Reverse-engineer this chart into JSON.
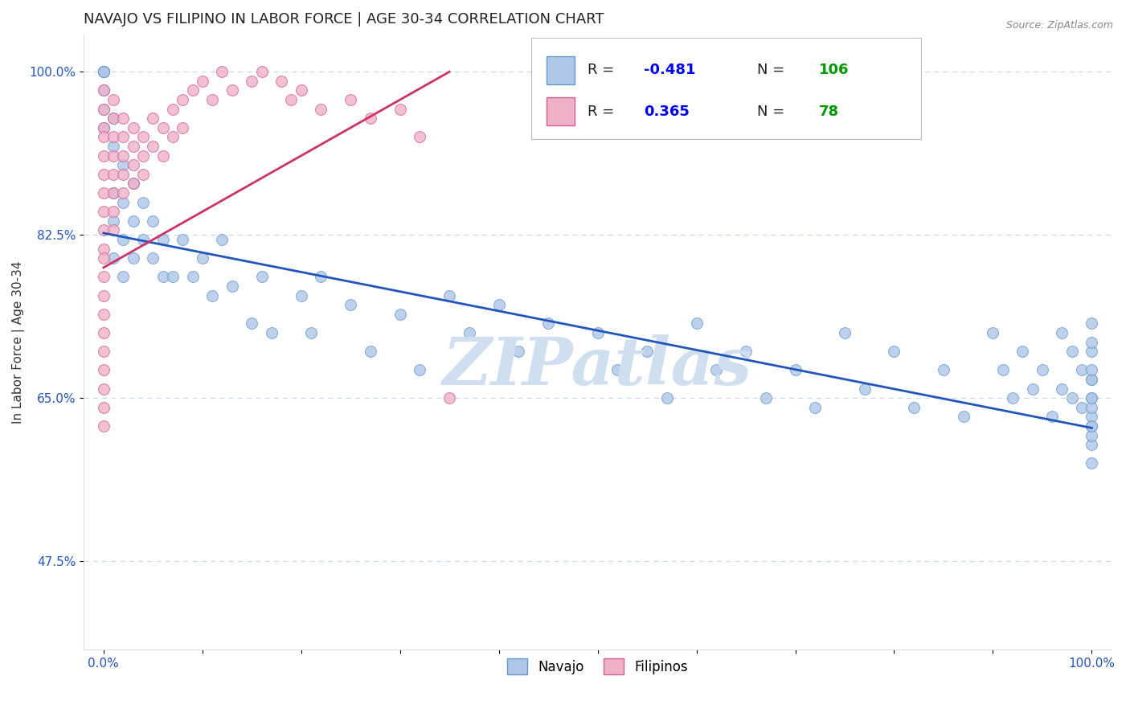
{
  "title": "NAVAJO VS FILIPINO IN LABOR FORCE | AGE 30-34 CORRELATION CHART",
  "source_text": "Source: ZipAtlas.com",
  "ylabel": "In Labor Force | Age 30-34",
  "xlim": [
    -0.02,
    1.02
  ],
  "ylim": [
    0.38,
    1.04
  ],
  "yticks": [
    0.475,
    0.65,
    0.825,
    1.0
  ],
  "ytick_labels": [
    "47.5%",
    "65.0%",
    "82.5%",
    "100.0%"
  ],
  "xticks": [
    0.0,
    0.1,
    0.2,
    0.3,
    0.4,
    0.5,
    0.6,
    0.7,
    0.8,
    0.9,
    1.0
  ],
  "xtick_labels": [
    "0.0%",
    "",
    "",
    "",
    "",
    "",
    "",
    "",
    "",
    "",
    "100.0%"
  ],
  "navajo_color": "#aec6e8",
  "navajo_edge_color": "#6699cc",
  "filipino_color": "#f0b0c8",
  "filipino_edge_color": "#d06090",
  "navajo_line_color": "#2255bb",
  "filipino_line_color": "#cc3366",
  "watermark": "ZIPatlas",
  "watermark_color": "#d0dff0",
  "legend_R_color": "#0000ee",
  "legend_N_color": "#009900",
  "background_color": "#ffffff",
  "grid_color": "#c8daf0",
  "title_fontsize": 13,
  "marker_size": 100,
  "navajo_line_start_x": 0.0,
  "navajo_line_start_y": 0.827,
  "navajo_line_end_x": 1.0,
  "navajo_line_end_y": 0.618,
  "filipino_line_start_x": 0.0,
  "filipino_line_start_y": 0.79,
  "filipino_line_end_x": 0.35,
  "filipino_line_end_y": 1.0,
  "navajo_x": [
    0.0,
    0.0,
    0.0,
    0.0,
    0.0,
    0.0,
    0.0,
    0.0,
    0.01,
    0.01,
    0.01,
    0.01,
    0.01,
    0.02,
    0.02,
    0.02,
    0.02,
    0.03,
    0.03,
    0.03,
    0.04,
    0.04,
    0.05,
    0.05,
    0.06,
    0.06,
    0.07,
    0.08,
    0.09,
    0.1,
    0.11,
    0.12,
    0.13,
    0.15,
    0.16,
    0.17,
    0.2,
    0.21,
    0.22,
    0.25,
    0.27,
    0.3,
    0.32,
    0.35,
    0.37,
    0.4,
    0.42,
    0.45,
    0.5,
    0.52,
    0.55,
    0.57,
    0.6,
    0.62,
    0.65,
    0.67,
    0.7,
    0.72,
    0.75,
    0.77,
    0.8,
    0.82,
    0.85,
    0.87,
    0.9,
    0.91,
    0.92,
    0.93,
    0.94,
    0.95,
    0.96,
    0.97,
    0.97,
    0.98,
    0.98,
    0.99,
    0.99,
    1.0,
    1.0,
    1.0,
    1.0,
    1.0,
    1.0,
    1.0,
    1.0,
    1.0,
    1.0,
    1.0,
    1.0,
    1.0,
    1.0,
    1.0
  ],
  "navajo_y": [
    1.0,
    1.0,
    1.0,
    1.0,
    1.0,
    0.98,
    0.96,
    0.94,
    0.95,
    0.92,
    0.87,
    0.84,
    0.8,
    0.9,
    0.86,
    0.82,
    0.78,
    0.88,
    0.84,
    0.8,
    0.86,
    0.82,
    0.84,
    0.8,
    0.82,
    0.78,
    0.78,
    0.82,
    0.78,
    0.8,
    0.76,
    0.82,
    0.77,
    0.73,
    0.78,
    0.72,
    0.76,
    0.72,
    0.78,
    0.75,
    0.7,
    0.74,
    0.68,
    0.76,
    0.72,
    0.75,
    0.7,
    0.73,
    0.72,
    0.68,
    0.7,
    0.65,
    0.73,
    0.68,
    0.7,
    0.65,
    0.68,
    0.64,
    0.72,
    0.66,
    0.7,
    0.64,
    0.68,
    0.63,
    0.72,
    0.68,
    0.65,
    0.7,
    0.66,
    0.68,
    0.63,
    0.72,
    0.66,
    0.7,
    0.65,
    0.68,
    0.64,
    0.73,
    0.7,
    0.67,
    0.65,
    0.62,
    0.6,
    0.63,
    0.67,
    0.64,
    0.61,
    0.58,
    0.71,
    0.68,
    0.65,
    0.62
  ],
  "filipino_x": [
    0.0,
    0.0,
    0.0,
    0.0,
    0.0,
    0.0,
    0.0,
    0.0,
    0.0,
    0.0,
    0.0,
    0.0,
    0.0,
    0.0,
    0.0,
    0.0,
    0.0,
    0.0,
    0.0,
    0.0,
    0.01,
    0.01,
    0.01,
    0.01,
    0.01,
    0.01,
    0.01,
    0.01,
    0.02,
    0.02,
    0.02,
    0.02,
    0.02,
    0.03,
    0.03,
    0.03,
    0.03,
    0.04,
    0.04,
    0.04,
    0.05,
    0.05,
    0.06,
    0.06,
    0.07,
    0.07,
    0.08,
    0.08,
    0.09,
    0.1,
    0.11,
    0.12,
    0.13,
    0.15,
    0.16,
    0.18,
    0.19,
    0.2,
    0.22,
    0.25,
    0.27,
    0.3,
    0.32,
    0.35
  ],
  "filipino_y": [
    0.98,
    0.96,
    0.94,
    0.93,
    0.91,
    0.89,
    0.87,
    0.85,
    0.83,
    0.81,
    0.8,
    0.78,
    0.76,
    0.74,
    0.72,
    0.7,
    0.68,
    0.66,
    0.64,
    0.62,
    0.97,
    0.95,
    0.93,
    0.91,
    0.89,
    0.87,
    0.85,
    0.83,
    0.95,
    0.93,
    0.91,
    0.89,
    0.87,
    0.94,
    0.92,
    0.9,
    0.88,
    0.93,
    0.91,
    0.89,
    0.95,
    0.92,
    0.94,
    0.91,
    0.96,
    0.93,
    0.97,
    0.94,
    0.98,
    0.99,
    0.97,
    1.0,
    0.98,
    0.99,
    1.0,
    0.99,
    0.97,
    0.98,
    0.96,
    0.97,
    0.95,
    0.96,
    0.93,
    0.65
  ]
}
